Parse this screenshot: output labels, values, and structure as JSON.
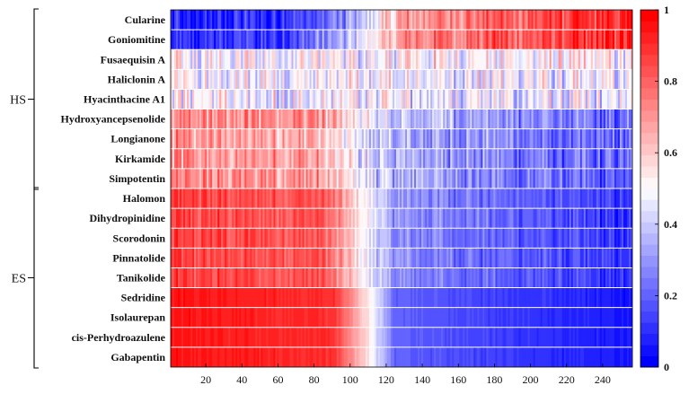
{
  "chart_data": {
    "type": "heatmap",
    "title": "",
    "xlabel": "",
    "ylabel": "",
    "x_range": [
      1,
      256
    ],
    "x_ticks": [
      20,
      40,
      60,
      80,
      100,
      120,
      140,
      160,
      180,
      200,
      220,
      240
    ],
    "value_range": [
      0,
      1
    ],
    "colorbar": {
      "ticks": [
        0,
        0.2,
        0.4,
        0.6,
        0.8,
        1
      ],
      "tick_labels": [
        "0",
        "0.2",
        "0.4",
        "0.6",
        "0.8",
        "1"
      ],
      "low_color": "#0000ff",
      "mid_color": "#ffffff",
      "high_color": "#ff0000",
      "levels": 32
    },
    "rows": [
      {
        "name": "Cularine",
        "profile": [
          [
            1,
            0.05
          ],
          [
            70,
            0.12
          ],
          [
            95,
            0.25
          ],
          [
            130,
            0.7
          ],
          [
            256,
            0.92
          ]
        ],
        "noise": 0.28
      },
      {
        "name": "Goniomitine",
        "profile": [
          [
            1,
            0.08
          ],
          [
            70,
            0.15
          ],
          [
            95,
            0.3
          ],
          [
            130,
            0.72
          ],
          [
            256,
            0.92
          ]
        ],
        "noise": 0.28
      },
      {
        "name": "Fusaequisin A",
        "profile": [
          [
            1,
            0.5
          ],
          [
            256,
            0.5
          ]
        ],
        "noise": 0.4
      },
      {
        "name": "Haliclonin A",
        "profile": [
          [
            1,
            0.48
          ],
          [
            256,
            0.48
          ]
        ],
        "noise": 0.4
      },
      {
        "name": "Hyacinthacine A1",
        "profile": [
          [
            1,
            0.48
          ],
          [
            256,
            0.45
          ]
        ],
        "noise": 0.4
      },
      {
        "name": "Hydroxyancepsenolide",
        "profile": [
          [
            1,
            0.72
          ],
          [
            80,
            0.72
          ],
          [
            120,
            0.4
          ],
          [
            256,
            0.2
          ]
        ],
        "noise": 0.3
      },
      {
        "name": "Longianone",
        "profile": [
          [
            1,
            0.68
          ],
          [
            80,
            0.65
          ],
          [
            120,
            0.35
          ],
          [
            256,
            0.18
          ]
        ],
        "noise": 0.3
      },
      {
        "name": "Kirkamide",
        "profile": [
          [
            1,
            0.7
          ],
          [
            80,
            0.68
          ],
          [
            120,
            0.35
          ],
          [
            256,
            0.17
          ]
        ],
        "noise": 0.3
      },
      {
        "name": "Simpotentin",
        "profile": [
          [
            1,
            0.72
          ],
          [
            80,
            0.7
          ],
          [
            120,
            0.35
          ],
          [
            256,
            0.15
          ]
        ],
        "noise": 0.3
      },
      {
        "name": "Halomon",
        "profile": [
          [
            1,
            0.85
          ],
          [
            85,
            0.82
          ],
          [
            125,
            0.3
          ],
          [
            256,
            0.1
          ]
        ],
        "noise": 0.18
      },
      {
        "name": "Dihydropinidine",
        "profile": [
          [
            1,
            0.86
          ],
          [
            85,
            0.82
          ],
          [
            125,
            0.3
          ],
          [
            256,
            0.1
          ]
        ],
        "noise": 0.18
      },
      {
        "name": "Scorodonin",
        "profile": [
          [
            1,
            0.86
          ],
          [
            85,
            0.82
          ],
          [
            125,
            0.28
          ],
          [
            256,
            0.1
          ]
        ],
        "noise": 0.18
      },
      {
        "name": "Pinnatolide",
        "profile": [
          [
            1,
            0.86
          ],
          [
            85,
            0.82
          ],
          [
            125,
            0.28
          ],
          [
            256,
            0.1
          ]
        ],
        "noise": 0.18
      },
      {
        "name": "Tanikolide",
        "profile": [
          [
            1,
            0.86
          ],
          [
            85,
            0.82
          ],
          [
            125,
            0.28
          ],
          [
            256,
            0.1
          ]
        ],
        "noise": 0.18
      },
      {
        "name": "Sedridine",
        "profile": [
          [
            1,
            0.95
          ],
          [
            90,
            0.9
          ],
          [
            110,
            0.55
          ],
          [
            125,
            0.2
          ],
          [
            256,
            0.05
          ]
        ],
        "noise": 0.06
      },
      {
        "name": "Isolaurepan",
        "profile": [
          [
            1,
            0.95
          ],
          [
            90,
            0.9
          ],
          [
            110,
            0.55
          ],
          [
            125,
            0.2
          ],
          [
            256,
            0.05
          ]
        ],
        "noise": 0.06
      },
      {
        "name": "cis-Perhydroazulene",
        "profile": [
          [
            1,
            0.95
          ],
          [
            90,
            0.9
          ],
          [
            110,
            0.55
          ],
          [
            125,
            0.2
          ],
          [
            256,
            0.05
          ]
        ],
        "noise": 0.06
      },
      {
        "name": "Gabapentin",
        "profile": [
          [
            1,
            0.95
          ],
          [
            90,
            0.9
          ],
          [
            110,
            0.55
          ],
          [
            125,
            0.2
          ],
          [
            256,
            0.05
          ]
        ],
        "noise": 0.06
      }
    ],
    "groups": [
      {
        "label": "HS",
        "first_row": 0,
        "last_row": 8
      },
      {
        "label": "ES",
        "first_row": 9,
        "last_row": 17
      }
    ]
  }
}
